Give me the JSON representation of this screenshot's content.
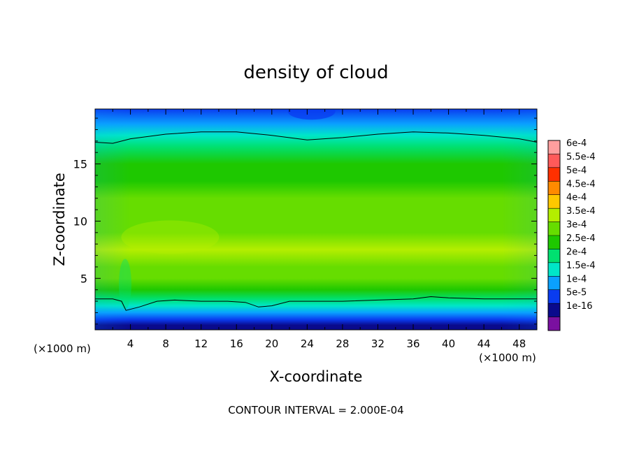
{
  "chart_data": {
    "type": "heatmap",
    "title": "density of cloud",
    "xlabel": "X-coordinate",
    "ylabel": "Z-coordinate",
    "x_unit": "(×1000 m)",
    "y_unit": "(×1000 m)",
    "xlim": [
      0,
      50
    ],
    "ylim": [
      0.5,
      19.8
    ],
    "x_ticks": [
      4,
      8,
      12,
      16,
      20,
      24,
      28,
      32,
      36,
      40,
      44,
      48
    ],
    "y_ticks": [
      5,
      10,
      15
    ],
    "footer": "CONTOUR INTERVAL = 2.000E-04",
    "colorbar": {
      "labels": [
        "6e-4",
        "5.5e-4",
        "5e-4",
        "4.5e-4",
        "4e-4",
        "3.5e-4",
        "3e-4",
        "2.5e-4",
        "2e-4",
        "1.5e-4",
        "1e-4",
        "5e-5",
        "1e-16"
      ],
      "values": [
        0.0006,
        0.00055,
        0.0005,
        0.00045,
        0.0004,
        0.00035,
        0.0003,
        0.00025,
        0.0002,
        0.00015,
        0.0001,
        5e-05,
        1e-16
      ],
      "colors": [
        "#ff9e9e",
        "#ff5a5a",
        "#ff3000",
        "#ff8a00",
        "#ffc800",
        "#b4ee00",
        "#66dd00",
        "#1ec800",
        "#00e070",
        "#00e6c8",
        "#0aa0ff",
        "#0a3cf0",
        "#0a0a8c",
        "#7a10a0"
      ]
    },
    "contour_levels": [
      0.0002
    ],
    "profile": {
      "z": [
        0.5,
        0.9,
        1.4,
        2.0,
        2.6,
        3.2,
        4.0,
        5.0,
        6.0,
        7.5,
        9.0,
        10.5,
        12.0,
        13.5,
        15.0,
        16.5,
        17.5,
        18.5,
        19.8
      ],
      "density": [
        1e-16,
        2e-05,
        5e-05,
        0.0001,
        0.00015,
        0.0002,
        0.00026,
        0.0003,
        0.00032,
        0.00035,
        0.000345,
        0.00033,
        0.00031,
        0.00028,
        0.00025,
        0.00021,
        0.00017,
        0.00012,
        7e-05
      ]
    },
    "contour_lines": [
      {
        "level": 0.0002,
        "name": "upper",
        "x": [
          0,
          2,
          4,
          8,
          12,
          16,
          20,
          24,
          28,
          32,
          36,
          40,
          44,
          48,
          50
        ],
        "z": [
          16.9,
          16.8,
          17.2,
          17.6,
          17.8,
          17.8,
          17.5,
          17.1,
          17.3,
          17.6,
          17.8,
          17.7,
          17.5,
          17.2,
          16.9
        ]
      },
      {
        "level": 0.0002,
        "name": "lower",
        "x": [
          0,
          2,
          3,
          3.5,
          5,
          7,
          9,
          12,
          15,
          17,
          18.5,
          20,
          22,
          24,
          28,
          32,
          36,
          38,
          40,
          44,
          48,
          50
        ],
        "z": [
          3.2,
          3.2,
          3.0,
          2.2,
          2.5,
          3.0,
          3.1,
          3.0,
          3.0,
          2.9,
          2.5,
          2.6,
          3.0,
          3.0,
          3.0,
          3.1,
          3.2,
          3.4,
          3.3,
          3.2,
          3.2,
          3.2
        ]
      }
    ]
  }
}
